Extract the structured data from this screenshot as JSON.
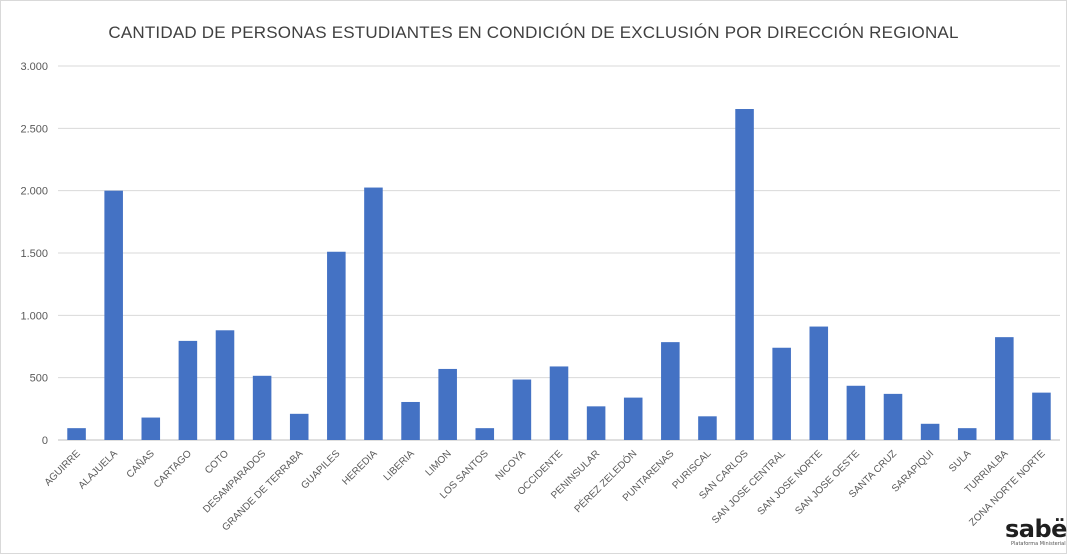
{
  "chart_data": {
    "type": "bar",
    "title": "CANTIDAD DE PERSONAS ESTUDIANTES EN CONDICIÓN DE EXCLUSIÓN POR DIRECCIÓN REGIONAL",
    "categories": [
      "AGUIRRE",
      "ALAJUELA",
      "CAÑAS",
      "CARTAGO",
      "COTO",
      "DESAMPARADOS",
      "GRANDE DE TERRABA",
      "GUAPILES",
      "HEREDIA",
      "LIBERIA",
      "LIMON",
      "LOS SANTOS",
      "NICOYA",
      "OCCIDENTE",
      "PENINSULAR",
      "PÉREZ ZELEDÓN",
      "PUNTARENAS",
      "PURISCAL",
      "SAN CARLOS",
      "SAN JOSE CENTRAL",
      "SAN JOSE NORTE",
      "SAN JOSE OESTE",
      "SANTA CRUZ",
      "SARAPIQUI",
      "SULA",
      "TURRIALBA",
      "ZONA NORTE NORTE"
    ],
    "values": [
      95,
      2000,
      180,
      795,
      880,
      515,
      210,
      1510,
      2025,
      305,
      570,
      95,
      485,
      590,
      270,
      340,
      785,
      190,
      2655,
      740,
      910,
      435,
      370,
      130,
      95,
      825,
      380
    ],
    "ylim": [
      0,
      3000
    ],
    "yticks": [
      0,
      500,
      1000,
      1500,
      2000,
      2500,
      3000
    ],
    "ytick_labels": [
      "0",
      "500",
      "1.000",
      "1.500",
      "2.000",
      "2.500",
      "3.000"
    ],
    "xlabel": "",
    "ylabel": "",
    "grid": true,
    "bar_color": "#4472c4",
    "grid_color": "#d9d9d9"
  },
  "watermark": {
    "text": "sabër",
    "subtext": "Plataforma Ministerial"
  }
}
